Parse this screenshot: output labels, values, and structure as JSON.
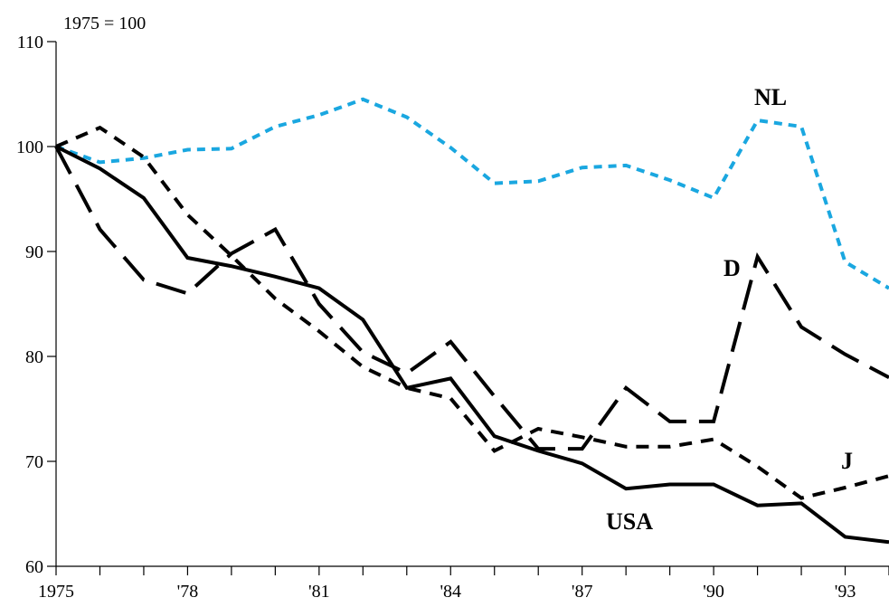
{
  "chart_data": {
    "type": "line",
    "unit_label": "1975 = 100",
    "x": [
      1975,
      1976,
      1977,
      1978,
      1979,
      1980,
      1981,
      1982,
      1983,
      1984,
      1985,
      1986,
      1987,
      1988,
      1989,
      1990,
      1991,
      1992,
      1993,
      1994
    ],
    "x_tick_labels": [
      {
        "year": 1975,
        "label": "1975"
      },
      {
        "year": 1978,
        "label": "'78"
      },
      {
        "year": 1981,
        "label": "'81"
      },
      {
        "year": 1984,
        "label": "'84"
      },
      {
        "year": 1987,
        "label": "'87"
      },
      {
        "year": 1990,
        "label": "'90"
      },
      {
        "year": 1993,
        "label": "'93"
      }
    ],
    "y_ticks": [
      60,
      70,
      80,
      90,
      100,
      110
    ],
    "ylim": [
      60,
      110
    ],
    "xlim": [
      1975,
      1994
    ],
    "grid": false,
    "series": [
      {
        "name": "NL",
        "color": "#1aa7e0",
        "dash": "dotted",
        "values": [
          100,
          98.5,
          98.9,
          99.7,
          99.8,
          101.9,
          103.0,
          104.5,
          102.8,
          99.9,
          96.5,
          96.7,
          98.0,
          98.2,
          96.8,
          95.1,
          102.5,
          101.9,
          89.0,
          86.5
        ]
      },
      {
        "name": "D",
        "color": "#000000",
        "dash": "long-dash",
        "values": [
          100,
          92.1,
          87.3,
          86.0,
          89.8,
          92.1,
          85.0,
          80.4,
          78.4,
          81.4,
          76.2,
          71.2,
          71.2,
          77.0,
          73.8,
          73.8,
          89.5,
          82.8,
          80.2,
          78.0
        ]
      },
      {
        "name": "J",
        "color": "#000000",
        "dash": "short-dash",
        "values": [
          100,
          101.8,
          99.0,
          93.5,
          89.6,
          85.5,
          82.4,
          79.0,
          77.0,
          76.0,
          71.0,
          73.1,
          72.3,
          71.4,
          71.4,
          72.1,
          69.5,
          66.5,
          67.5,
          68.6
        ]
      },
      {
        "name": "USA",
        "color": "#000000",
        "dash": "solid",
        "values": [
          100,
          97.9,
          95.1,
          89.4,
          88.6,
          87.6,
          86.5,
          83.5,
          77.0,
          77.9,
          72.4,
          71.0,
          69.8,
          67.4,
          67.8,
          67.8,
          65.8,
          66.0,
          62.8,
          62.3
        ]
      }
    ],
    "series_labels": [
      {
        "series": "NL",
        "text": "NL"
      },
      {
        "series": "D",
        "text": "D"
      },
      {
        "series": "J",
        "text": "J"
      },
      {
        "series": "USA",
        "text": "USA"
      }
    ]
  }
}
